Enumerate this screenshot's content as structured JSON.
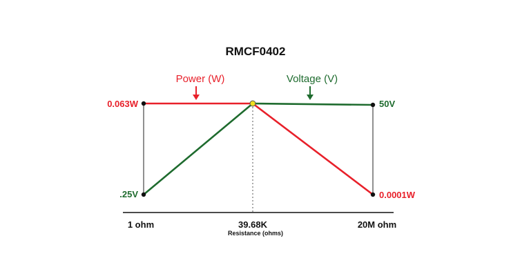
{
  "chart_data": {
    "type": "line",
    "title": "RMCF0402",
    "xlabel": "Resistance (ohms)",
    "x_ticks": [
      "1 ohm",
      "39.68K",
      "20M ohm"
    ],
    "series": [
      {
        "name": "Power (W)",
        "color": "#e8202a",
        "points": [
          {
            "x": "1 ohm",
            "y": 0.063
          },
          {
            "x": "39.68K",
            "y": 0.063
          },
          {
            "x": "20M ohm",
            "y": 0.0001
          }
        ],
        "start_label": "0.063W",
        "end_label": "0.0001W"
      },
      {
        "name": "Voltage (V)",
        "color": "#1e6b2e",
        "points": [
          {
            "x": "1 ohm",
            "y": 0.25
          },
          {
            "x": "39.68K",
            "y": 50
          },
          {
            "x": "20M ohm",
            "y": 50
          }
        ],
        "start_label": ".25V",
        "end_label": "50V"
      }
    ],
    "crossover": {
      "x": "39.68K",
      "color": "#f0e020"
    },
    "grid": false,
    "legend": "arrow labels above lines"
  }
}
